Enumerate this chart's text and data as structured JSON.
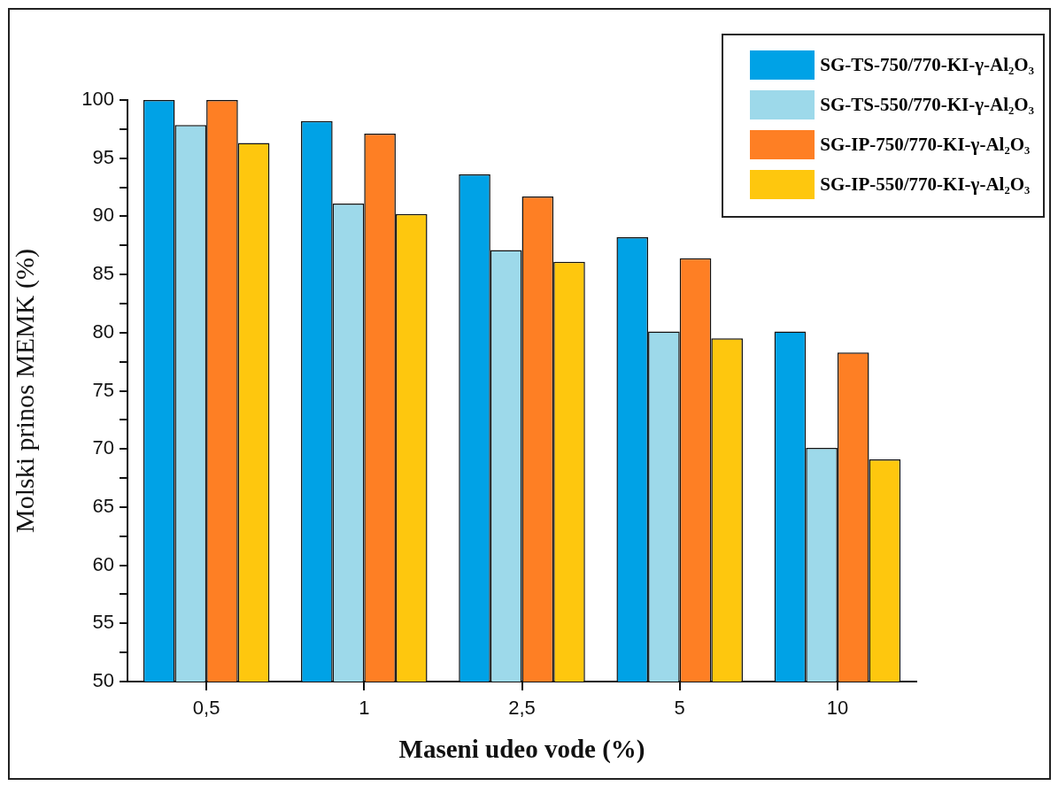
{
  "chart_data": {
    "type": "bar",
    "xlabel": "Maseni udeo vode (%)",
    "ylabel": "Molski prinos MEMK (%)",
    "categories": [
      "0,5",
      "1",
      "2,5",
      "5",
      "10"
    ],
    "series": [
      {
        "name": "SG-TS-750/770-KI-γ-Al₂O₃",
        "color": "#00a2e6",
        "values": [
          100,
          98.2,
          93.6,
          88.2,
          80.1
        ]
      },
      {
        "name": "SG-TS-550/770-KI-γ-Al₂O₃",
        "color": "#9dd9ea",
        "values": [
          97.85,
          91.1,
          87.1,
          80.1,
          70.1
        ]
      },
      {
        "name": "SG-IP-750/770-KI-γ-Al₂O₃",
        "color": "#fe7f24",
        "values": [
          100,
          97.1,
          91.7,
          86.4,
          78.3
        ]
      },
      {
        "name": "SG-IP-550/770-KI-γ-Al₂O₃",
        "color": "#fec70e",
        "values": [
          96.3,
          90.2,
          86.1,
          79.5,
          69.1
        ]
      }
    ],
    "ylim": [
      50,
      100
    ],
    "yticks": [
      50,
      {
        "value": 52.5,
        "label": null
      },
      55,
      {
        "value": 57.5,
        "label": null
      },
      60,
      {
        "value": 62.5,
        "label": null
      },
      65,
      {
        "value": 67.5,
        "label": null
      },
      70,
      {
        "value": 72.5,
        "label": null
      },
      75,
      {
        "value": 77.5,
        "label": null
      },
      80,
      {
        "value": 82.5,
        "label": null
      },
      85,
      {
        "value": 87.5,
        "label": null
      },
      90,
      {
        "value": 92.5,
        "label": null
      },
      95,
      {
        "value": 97.5,
        "label": null
      },
      100
    ],
    "grid": false,
    "legend": "top right"
  }
}
